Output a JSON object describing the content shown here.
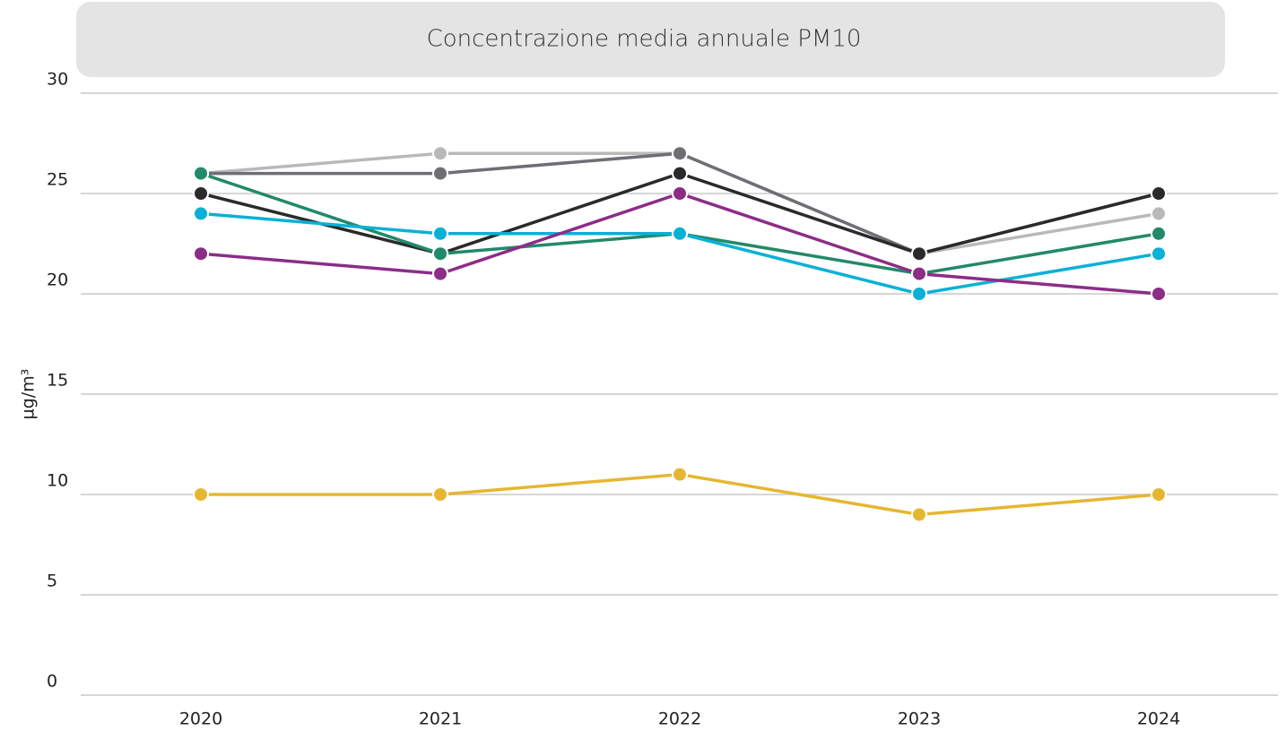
{
  "chart_data": {
    "type": "line",
    "title": "Concentrazione media annuale PM10",
    "y_label": "µg/m³",
    "categories": [
      "2020",
      "2021",
      "2022",
      "2023",
      "2024"
    ],
    "series": [
      {
        "color": "#b9b9b9",
        "values": [
          26,
          27,
          27,
          22,
          24
        ]
      },
      {
        "color": "#6e6e74",
        "values": [
          26,
          26,
          27,
          22,
          25
        ]
      },
      {
        "color": "#2a2a2a",
        "values": [
          25,
          22,
          26,
          22,
          25
        ]
      },
      {
        "color": "#22896a",
        "values": [
          26,
          22,
          23,
          21,
          23
        ]
      },
      {
        "color": "#0ab0d6",
        "values": [
          24,
          23,
          23,
          20,
          22
        ]
      },
      {
        "color": "#8c2d87",
        "values": [
          22,
          21,
          25,
          21,
          20
        ]
      },
      {
        "color": "#e5b731",
        "values": [
          10,
          10,
          11,
          9,
          10
        ]
      }
    ],
    "ylim": [
      0,
      30
    ],
    "yticks": [
      0,
      5,
      10,
      15,
      20,
      25,
      30
    ],
    "grid": true
  }
}
